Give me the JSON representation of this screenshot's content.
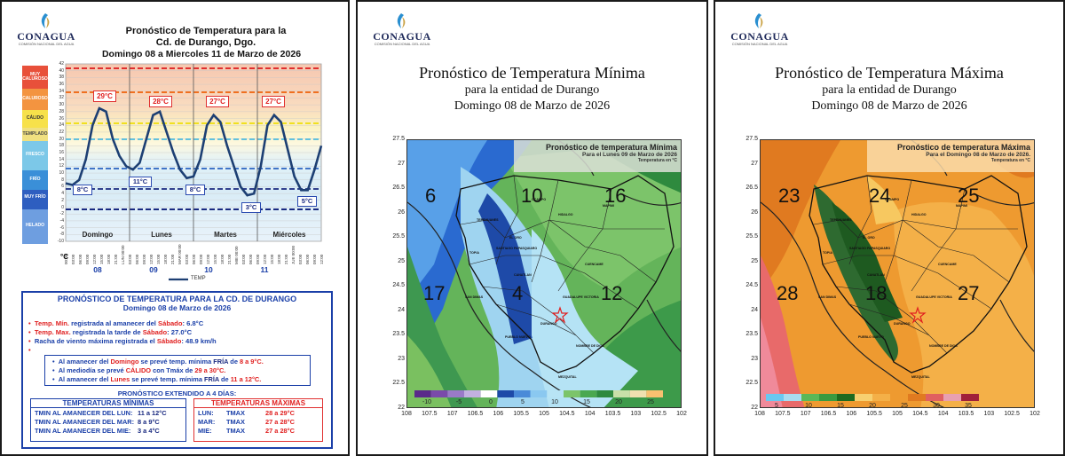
{
  "logo_text": "CONAGUA",
  "logo_sub": "COMISIÓN NACIONAL DEL AGUA",
  "panel1": {
    "title_line1": "Pronóstico  de Temperatura para la",
    "title_line2": "Cd. de Durango, Dgo.",
    "title_line3": "Domingo 08 a Miercoles 11 de Marzo de 2026",
    "bands": [
      "MUY CALUROSO",
      "CALUROSO",
      "CÁLIDO",
      "TEMPLADO",
      "FRESCO",
      "FRÍO",
      "MUY FRÍO",
      "HELADO"
    ],
    "unit": "°C",
    "y_ticks": [
      "42",
      "40",
      "38",
      "36",
      "34",
      "32",
      "30",
      "28",
      "26",
      "24",
      "22",
      "20",
      "18",
      "16",
      "14",
      "12",
      "10",
      "8",
      "6",
      "4",
      "2",
      "0",
      "-2",
      "-4",
      "-6",
      "-8",
      "-10"
    ],
    "x_ticks": [
      "00:00",
      "03:00",
      "06:00",
      "09:00",
      "12:00",
      "15:00",
      "18:00",
      "21:00",
      "LUN 00:00",
      "03:00",
      "06:00",
      "09:00",
      "12:00",
      "15:00",
      "18:00",
      "21:00",
      "MAR 00:00",
      "03:00",
      "06:00",
      "09:00",
      "12:00",
      "15:00",
      "18:00",
      "21:00",
      "MIE 00:00",
      "03:00",
      "06:00",
      "09:00",
      "12:00",
      "15:00",
      "18:00",
      "21:00",
      "JUE 00:00",
      "03:00",
      "06:00",
      "09:00",
      "12:00"
    ],
    "days": [
      "Domingo",
      "Lunes",
      "Martes",
      "Miércoles"
    ],
    "day_nums": [
      "08",
      "09",
      "10",
      "11"
    ],
    "legend": "TEMP",
    "max_labels": [
      "29°C",
      "28°C",
      "27°C",
      "27°C"
    ],
    "min_labels": [
      "8°C",
      "11°C",
      "8°C",
      "3°C",
      "5°C"
    ],
    "colors": {
      "red_line": "#e03030",
      "orange_line": "#f07020",
      "yellow_line": "#f0e020",
      "cyan_line": "#30b0e0",
      "blue_line": "#1c4a9c",
      "navy_line": "#1a2a80",
      "curve": "#1d3f73"
    }
  },
  "info": {
    "heading1": "PRONÓSTICO DE TEMPERATURA PARA LA CD. DE DURANGO",
    "heading2": "Domingo 08 de Marzo de 2026",
    "b1a": "Temp. Mín.",
    "b1b": " registrada al amanecer del ",
    "b1c": "Sábado",
    "b1d": ": 6.8°C",
    "b2a": "Temp. Max.",
    "b2b": " registrada la tarde de ",
    "b2c": "Sábado",
    "b2d": ": 27.0°C",
    "b3a": "Racha de viento máxima registrada el ",
    "b3b": "Sábado",
    "b3c": ": 48.9 km/h",
    "p1a": "Al amanecer del ",
    "p1b": "Domingo",
    "p1c": " se prevé temp. mínima ",
    "p1d": "FRÍA",
    "p1e": " de ",
    "p1f": "8 a 9°C.",
    "p2a": "Al mediodía se prevé ",
    "p2b": "CÁLIDO",
    "p2c": " con Tmáx de ",
    "p2d": "29 a 30°C.",
    "p3a": "Al amanecer del ",
    "p3b": "Lunes",
    "p3c": " se prevé temp. mínima ",
    "p3d": "FRÍA",
    "p3e": " de ",
    "p3f": "11 a 12°C.",
    "extended": "PRONÓSTICO EXTENDIDO A 4 DÍAS:",
    "min_title": "TEMPERATURAS MÍNIMAS",
    "max_title": "TEMPERATURAS MÁXIMAS",
    "min_rows": [
      {
        "label": "TMIN AL AMANECER DEL  LUN:",
        "value": "11 a 12°C"
      },
      {
        "label": "TMIN AL AMANECER DEL  MAR:",
        "value": "8 a 9°C"
      },
      {
        "label": "TMIN AL AMANECER DEL  MIE:",
        "value": "3 a 4°C"
      }
    ],
    "max_rows": [
      {
        "day": "LUN:",
        "label": "TMAX",
        "value": "28 a 29°C"
      },
      {
        "day": "MAR:",
        "label": "TMAX",
        "value": "27 a 28°C"
      },
      {
        "day": "MIE:",
        "label": "TMAX",
        "value": "27 a 28°C"
      }
    ]
  },
  "panel2": {
    "title": "Pronóstico de Temperatura Mínima",
    "sub1": "para la entidad de Durango",
    "sub2": "Domingo 08 de Marzo de 2026",
    "map_title": "Pronóstico de temperatura Mínima",
    "map_sub": "Para el Lunes 09 de Marzo de 2026",
    "map_unit": "Temperatura en °C",
    "big_numbers": [
      "6",
      "10",
      "16",
      "17",
      "4",
      "12"
    ],
    "colorbar": [
      "-10",
      "-5",
      "0",
      "5",
      "10",
      "15",
      "20",
      "25"
    ],
    "y_ticks": [
      "27.5",
      "27",
      "26.5",
      "26",
      "25.5",
      "25",
      "24.5",
      "24",
      "23.5",
      "23",
      "22.5",
      "22"
    ],
    "x_ticks": [
      "108",
      "107.5",
      "107",
      "106.5",
      "106",
      "105.5",
      "105",
      "104.5",
      "104",
      "103.5",
      "103",
      "102.5",
      "102"
    ],
    "cities": [
      "DURANGO",
      "EL ORO",
      "HIDALGO",
      "MAPIMI",
      "TEPEHUANES",
      "SANTIAGO PAPASQUIARO",
      "CANATLAN",
      "NOMBRE DE DIOS",
      "MEZQUITAL",
      "GUADALUPE VICTORIA",
      "CUENCAME",
      "TOPIA",
      "OCAMPO",
      "PUEBLO NUEVO",
      "SAN DIMAS"
    ]
  },
  "panel3": {
    "title": "Pronóstico de Temperatura Máxima",
    "sub1": "para la entidad de Durango",
    "sub2": "Domingo 08 de Marzo de 2026",
    "map_title": "Pronóstico de temperatura Máxima",
    "map_sub": "Para el Domingo 08 de Marzo de 2026.",
    "map_unit": "Temperatura en °C",
    "big_numbers": [
      "23",
      "24",
      "25",
      "28",
      "18",
      "27"
    ],
    "colorbar": [
      "5",
      "10",
      "15",
      "20",
      "25",
      "30",
      "35"
    ],
    "y_ticks": [
      "27.5",
      "27",
      "26.5",
      "26",
      "25.5",
      "25",
      "24.5",
      "24",
      "23.5",
      "23",
      "22.5",
      "22"
    ],
    "x_ticks": [
      "108",
      "107.5",
      "107",
      "106.5",
      "106",
      "105.5",
      "105",
      "104.5",
      "104",
      "103.5",
      "103",
      "102.5",
      "102"
    ],
    "cities": [
      "DURANGO",
      "EL ORO",
      "HIDALGO",
      "MAPIMI",
      "TEPEHUANES",
      "SANTIAGO PAPASQUIARO",
      "CANATLAN",
      "NOMBRE DE DIOS",
      "MEZQUITAL",
      "GUADALUPE VICTORIA",
      "CUENCAME",
      "TOPIA",
      "OCAMPO",
      "PUEBLO NUEVO",
      "SAN DIMAS"
    ]
  }
}
